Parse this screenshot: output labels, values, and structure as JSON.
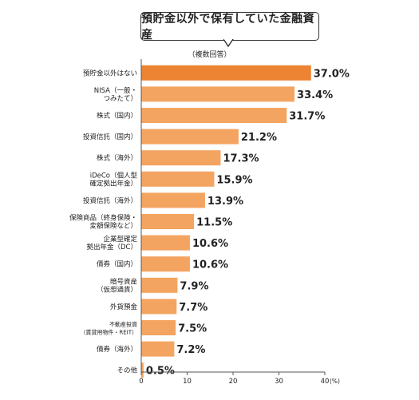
{
  "chart_data": {
    "type": "bar",
    "orientation": "horizontal",
    "title": "預貯金以外で保有していた金融資産",
    "subtitle": "（複数回答）",
    "unit": "(%)",
    "categories": [
      [
        "預貯金以外はない"
      ],
      [
        "NISA（一般・",
        "つみたて）"
      ],
      [
        "株式（国内）"
      ],
      [
        "投資信託（国内）"
      ],
      [
        "株式（海外）"
      ],
      [
        "iDeCo（個人型",
        "確定拠出年金）"
      ],
      [
        "投資信託（海外）"
      ],
      [
        "保険商品（終身保険・",
        "変額保険など）"
      ],
      [
        "企業型確定",
        "拠出年金（DC）"
      ],
      [
        "債券（国内）"
      ],
      [
        "暗号資産",
        "（仮想通貨）"
      ],
      [
        "外貨預金"
      ],
      [
        "不動産投資",
        "（賃貸用物件・REIT）"
      ],
      [
        "債券（海外）"
      ],
      [
        "その他"
      ]
    ],
    "values": [
      37.0,
      33.4,
      31.7,
      21.2,
      17.3,
      15.9,
      13.9,
      11.5,
      10.6,
      10.6,
      7.9,
      7.7,
      7.5,
      7.2,
      0.5
    ],
    "value_labels": [
      "37.0%",
      "33.4%",
      "31.7%",
      "21.2%",
      "17.3%",
      "15.9%",
      "13.9%",
      "11.5%",
      "10.6%",
      "10.6%",
      "7.9%",
      "7.7%",
      "7.5%",
      "7.2%",
      "0.5%"
    ],
    "xlim": [
      0,
      40
    ],
    "xticks": [
      "0",
      "10",
      "20",
      "30",
      "40"
    ],
    "grid": false,
    "highlight_index": 0,
    "colors": {
      "highlight": "#ec8433",
      "bar": "#f4a461",
      "axis": "#555555",
      "text": "#222222"
    }
  }
}
